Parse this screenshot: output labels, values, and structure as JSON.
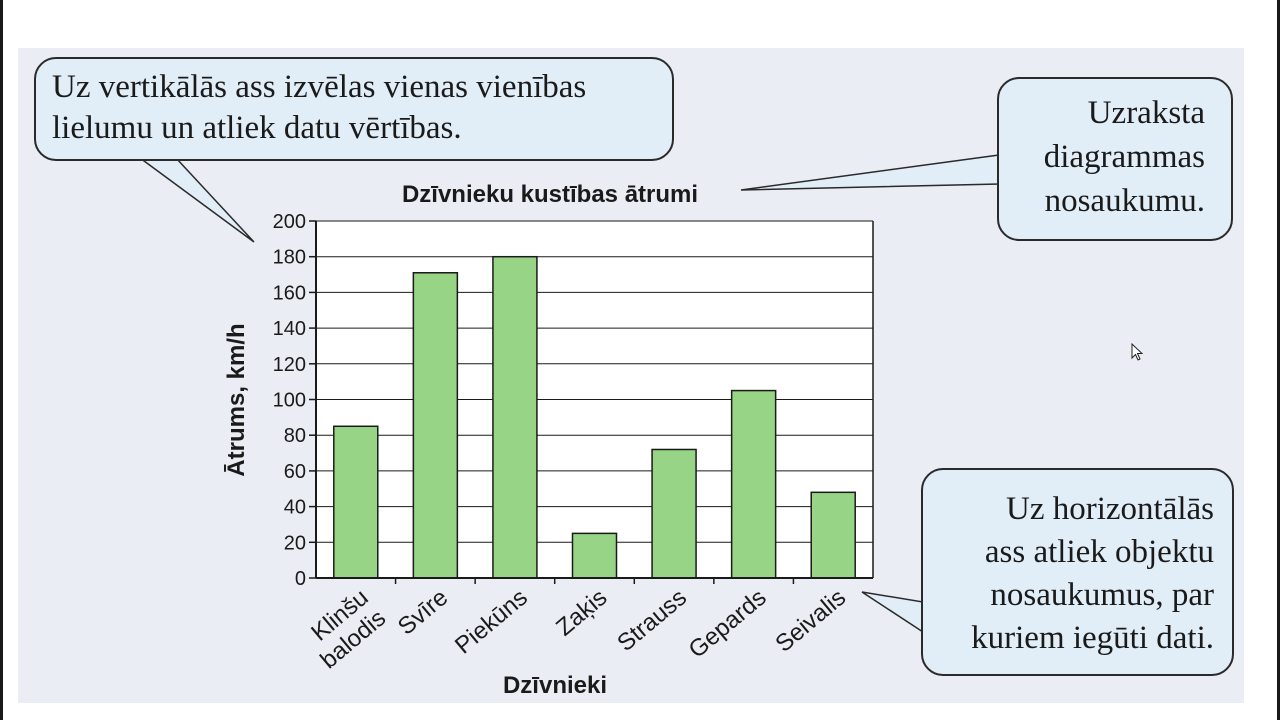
{
  "callouts": {
    "vertical_axis": "Uz vertikālās ass izvēlas vienas vienības\nlielumu un atliek datu vērtības.",
    "title_note": "Uzraksta\ndiagrammas\nnosaukumu.",
    "horizontal_axis": "Uz horizontālās\nass atliek objektu\nnosaukumus, par\nkuriem iegūti dati."
  },
  "chart_data": {
    "type": "bar",
    "title": "Dzīvnieku kustības ātrumi",
    "xlabel": "Dzīvnieki",
    "ylabel": "Ātrums, km/h",
    "categories": [
      [
        "Klinšu",
        "balodis"
      ],
      [
        "Svīre"
      ],
      [
        "Piekūns"
      ],
      [
        "Zaķis"
      ],
      [
        "Strauss"
      ],
      [
        "Gepards"
      ],
      [
        "Seivalis"
      ]
    ],
    "values": [
      85,
      171,
      180,
      25,
      72,
      105,
      48
    ],
    "ylim": [
      0,
      200
    ],
    "yticks": [
      "0",
      "20",
      "40",
      "60",
      "80",
      "100",
      "120",
      "140",
      "160",
      "180",
      "200"
    ],
    "grid": true,
    "bar_color": "#97d486"
  },
  "colors": {
    "panel_background": "#eaedf4",
    "callout_fill": "#e1edf7",
    "bar_fill": "#97d486",
    "bar_stroke": "#1a1a1a"
  }
}
